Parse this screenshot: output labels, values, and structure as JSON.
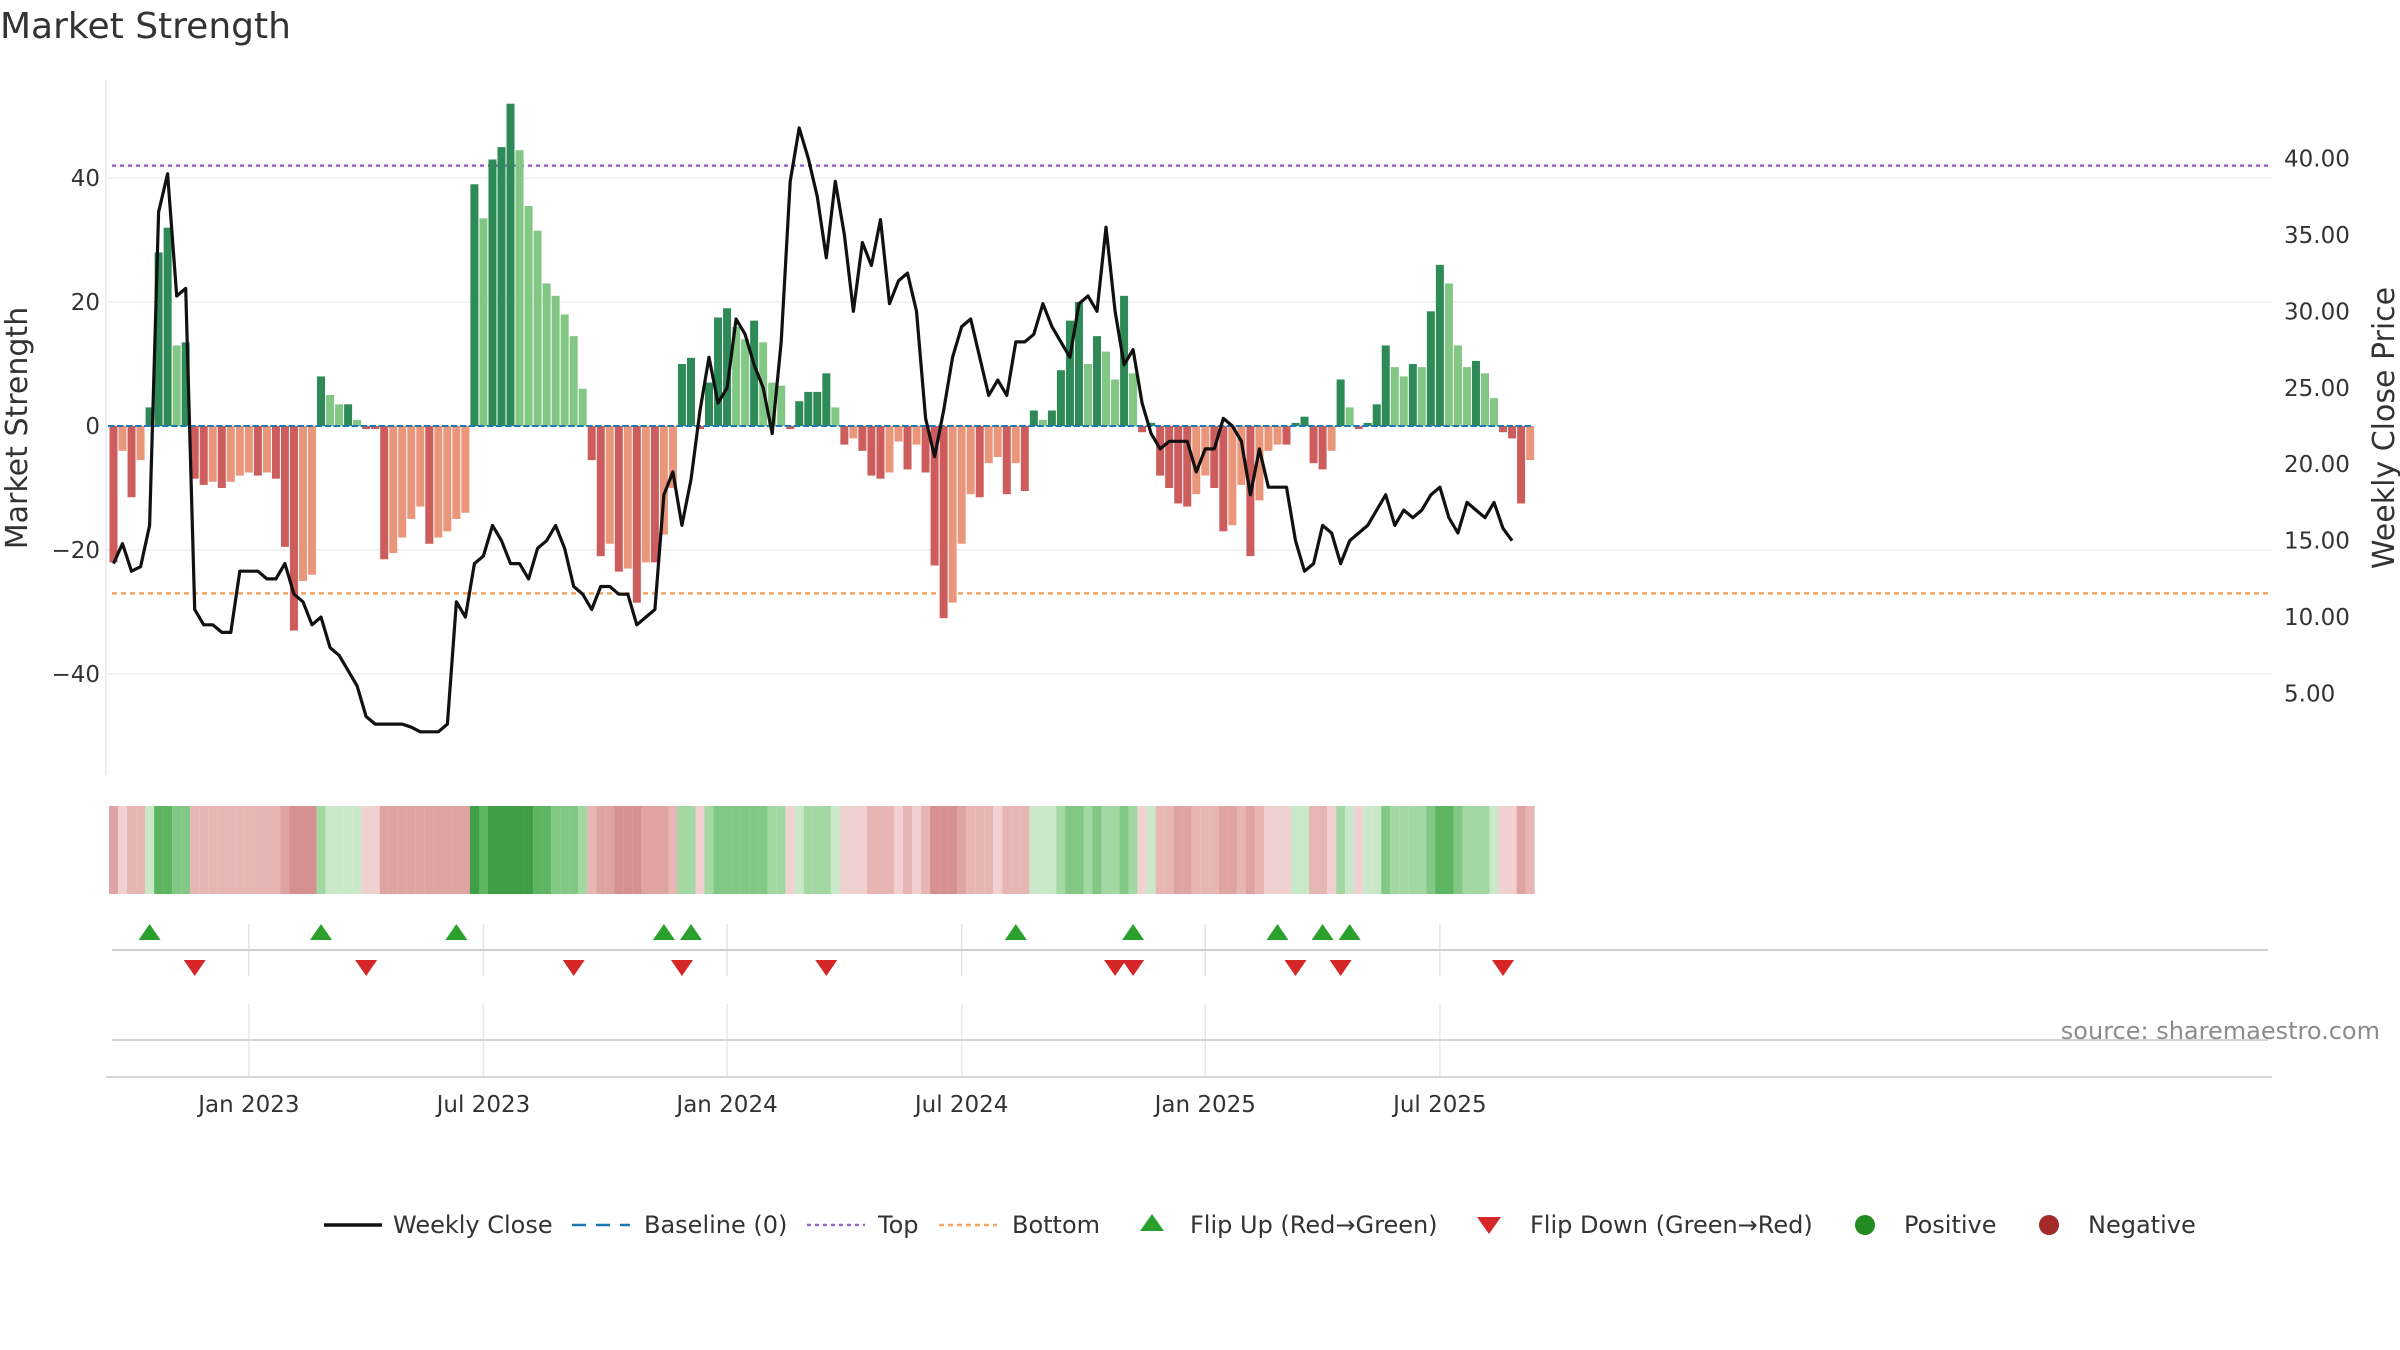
{
  "chart_data": {
    "type": "bar",
    "title": "Market Strength",
    "ylabel_left": "Market Strength",
    "ylabel_right": "Weekly Close Price",
    "source": "source: sharemaestro.com",
    "left_ticks": [
      {
        "v": 40,
        "t": "40"
      },
      {
        "v": 20,
        "t": "20"
      },
      {
        "v": 0,
        "t": "0"
      },
      {
        "v": -20,
        "t": "−20"
      },
      {
        "v": -40,
        "t": "−40"
      }
    ],
    "right_ticks": [
      {
        "v": 40,
        "t": "40.00"
      },
      {
        "v": 35,
        "t": "35.00"
      },
      {
        "v": 30,
        "t": "30.00"
      },
      {
        "v": 25,
        "t": "25.00"
      },
      {
        "v": 20,
        "t": "20.00"
      },
      {
        "v": 15,
        "t": "15.00"
      },
      {
        "v": 10,
        "t": "10.00"
      },
      {
        "v": 5,
        "t": "5.00"
      }
    ],
    "x_ticks": [
      {
        "i": 15,
        "t": "Jan 2023"
      },
      {
        "i": 41,
        "t": "Jul 2023"
      },
      {
        "i": 68,
        "t": "Jan 2024"
      },
      {
        "i": 94,
        "t": "Jul 2024"
      },
      {
        "i": 121,
        "t": "Jan 2025"
      },
      {
        "i": 147,
        "t": "Jul 2025"
      }
    ],
    "left_range": [
      -55.5,
      55.5
    ],
    "right_range": [
      0,
      45
    ],
    "top_line": 42,
    "bottom_line": -27,
    "strength": [
      -22,
      -4,
      -11.5,
      -5.5,
      3,
      28,
      32,
      13,
      13.5,
      -8.5,
      -9.5,
      -9,
      -10,
      -9,
      -8,
      -7.5,
      -8,
      -7.5,
      -8.5,
      -19.5,
      -33,
      -25,
      -24,
      8,
      5,
      3.5,
      3.5,
      1,
      -0.5,
      -0.5,
      -21.5,
      -20.5,
      -18,
      -15,
      -13,
      -19,
      -18,
      -17,
      -15,
      -14,
      39,
      33.5,
      43,
      45,
      52,
      44.5,
      35.5,
      31.5,
      23,
      21,
      18,
      14.5,
      6,
      -5.5,
      -21,
      -19,
      -23.5,
      -23,
      -28.5,
      -22,
      -22,
      -17.5,
      -10,
      10,
      11,
      -0.5,
      7,
      17.5,
      19,
      16,
      14,
      17,
      13.5,
      7,
      6.5,
      -0.5,
      4,
      5.5,
      5.5,
      8.5,
      3,
      -3,
      -2,
      -4,
      -8,
      -8.5,
      -7.5,
      -2.5,
      -7,
      -3,
      -7.5,
      -22.5,
      -31,
      -28.5,
      -19,
      -11,
      -11.5,
      -6,
      -5,
      -11,
      -6,
      -10.5,
      2.5,
      1,
      2.5,
      9,
      17,
      20,
      10,
      14.5,
      12,
      7.5,
      21,
      8.5,
      -1,
      0.5,
      -8,
      -10,
      -12.5,
      -13,
      -11,
      -8,
      -10,
      -17,
      -16,
      -9.5,
      -21,
      -12,
      -4,
      -3,
      -3,
      0.5,
      1.5,
      -6,
      -7,
      -4,
      7.5,
      3,
      -0.5,
      0.5,
      3.5,
      13,
      9.5,
      8,
      10,
      9.5,
      18.5,
      26,
      23,
      13,
      9.5,
      10.5,
      8.5,
      4.5,
      -1,
      -2,
      -12.5,
      -5.5
    ],
    "weekly_close": [
      13.5,
      14.8,
      13,
      13.3,
      16,
      36.5,
      39,
      31,
      31.5,
      10.5,
      9.5,
      9.5,
      9,
      9,
      13,
      13,
      13,
      12.5,
      12.5,
      13.5,
      11.5,
      11,
      9.5,
      10,
      8,
      7.5,
      6.5,
      5.5,
      3.5,
      3,
      3,
      3,
      3,
      2.8,
      2.5,
      2.5,
      2.5,
      3,
      11,
      10,
      13.5,
      14,
      16,
      15,
      13.5,
      13.5,
      12.5,
      14.5,
      15,
      16,
      14.5,
      12,
      11.5,
      10.5,
      12,
      12,
      11.5,
      11.5,
      9.5,
      10,
      10.5,
      18,
      19.5,
      16,
      19,
      23.5,
      27,
      24,
      25,
      29.5,
      28.5,
      26.5,
      25,
      22,
      28,
      38.5,
      42,
      40,
      37.5,
      33.5,
      38.5,
      35,
      30,
      34.5,
      33,
      36,
      30.5,
      32,
      32.5,
      30,
      23,
      20.5,
      23.5,
      27,
      29,
      29.5,
      27,
      24.5,
      25.5,
      24.5,
      28,
      28,
      28.5,
      30.5,
      29,
      28,
      27,
      30.5,
      31,
      30,
      35.5,
      30,
      26.5,
      27.5,
      24,
      22,
      21,
      21.5,
      21.5,
      21.5,
      19.5,
      21,
      21,
      23,
      22.5,
      21.5,
      18,
      21,
      18.5,
      18.5,
      18.5,
      15,
      13,
      13.5,
      16,
      15.5,
      13.5,
      15,
      15.5,
      16,
      17,
      18,
      16,
      17,
      16.5,
      17,
      18,
      18.5,
      16.5,
      15.5,
      17.5,
      17,
      16.5,
      17.5,
      15.8,
      15
    ]
  },
  "regime_colors": {
    "green": [
      "#c9e8c9",
      "#a3d8a3",
      "#82c784",
      "#5db562",
      "#3f9f46"
    ],
    "red": [
      "#f0d0d0",
      "#e8b5b5",
      "#e0a3a3",
      "#d69090",
      "#cf7b7b"
    ]
  },
  "bar_colors": {
    "pos_rising": "#2e8b57",
    "pos_falling": "#82c784",
    "neg_falling": "#cd5c5c",
    "neg_rising": "#e9967a"
  },
  "line_colors": {
    "close": "#111111",
    "baseline": "#1f77b4",
    "top": "#9966cc",
    "bottom": "#f4a460",
    "up": "#2ca02c",
    "down": "#d62728",
    "positive": "#228b22",
    "negative": "#a52a2a"
  },
  "flips_up": [
    4,
    23,
    38,
    61,
    64,
    100,
    113,
    129,
    134,
    137
  ],
  "flips_down": [
    9,
    28,
    51,
    63,
    79,
    111,
    113,
    131,
    136,
    154
  ],
  "legend": [
    {
      "key": "close",
      "label": "Weekly Close"
    },
    {
      "key": "baseline",
      "label": "Baseline (0)"
    },
    {
      "key": "top",
      "label": "Top"
    },
    {
      "key": "bottom",
      "label": "Bottom"
    },
    {
      "key": "up",
      "label": "Flip Up (Red→Green)"
    },
    {
      "key": "down",
      "label": "Flip Down (Green→Red)"
    },
    {
      "key": "positive",
      "label": "Positive"
    },
    {
      "key": "negative",
      "label": "Negative"
    }
  ]
}
